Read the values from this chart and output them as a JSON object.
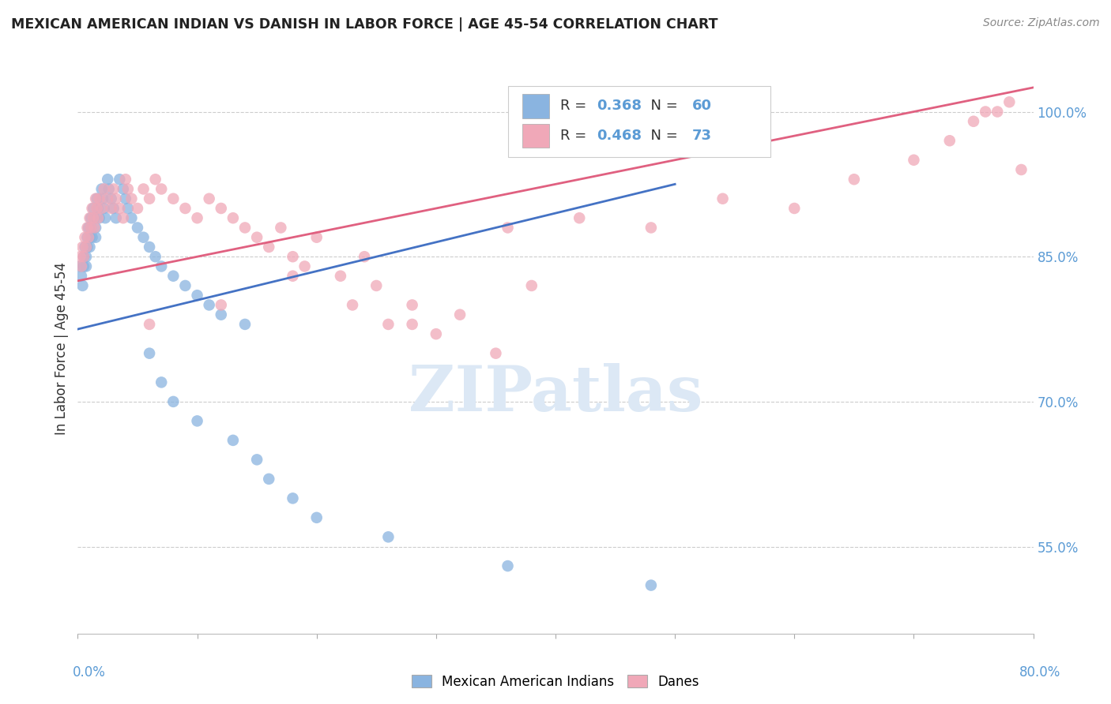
{
  "title": "MEXICAN AMERICAN INDIAN VS DANISH IN LABOR FORCE | AGE 45-54 CORRELATION CHART",
  "source": "Source: ZipAtlas.com",
  "ylabel": "In Labor Force | Age 45-54",
  "yaxis_ticks": [
    0.55,
    0.7,
    0.85,
    1.0
  ],
  "yaxis_labels": [
    "55.0%",
    "70.0%",
    "85.0%",
    "100.0%"
  ],
  "xmin": 0.0,
  "xmax": 0.8,
  "ymin": 0.46,
  "ymax": 1.05,
  "blue_R": 0.368,
  "blue_N": 60,
  "pink_R": 0.468,
  "pink_N": 73,
  "blue_color": "#8ab4e0",
  "pink_color": "#f0a8b8",
  "blue_line_color": "#4472c4",
  "pink_line_color": "#e06080",
  "legend_label_blue": "Mexican American Indians",
  "legend_label_pink": "Danes",
  "blue_trend_x0": 0.0,
  "blue_trend_y0": 0.775,
  "blue_trend_x1": 0.5,
  "blue_trend_y1": 0.925,
  "pink_trend_x0": 0.0,
  "pink_trend_y0": 0.825,
  "pink_trend_x1": 0.8,
  "pink_trend_y1": 1.025,
  "blue_scatter_x": [
    0.002,
    0.003,
    0.004,
    0.005,
    0.005,
    0.006,
    0.007,
    0.007,
    0.008,
    0.008,
    0.009,
    0.01,
    0.01,
    0.011,
    0.011,
    0.012,
    0.013,
    0.014,
    0.015,
    0.015,
    0.016,
    0.017,
    0.018,
    0.02,
    0.021,
    0.022,
    0.023,
    0.025,
    0.026,
    0.028,
    0.03,
    0.032,
    0.035,
    0.038,
    0.04,
    0.042,
    0.045,
    0.05,
    0.055,
    0.06,
    0.065,
    0.07,
    0.08,
    0.09,
    0.1,
    0.11,
    0.12,
    0.14,
    0.06,
    0.07,
    0.08,
    0.1,
    0.13,
    0.15,
    0.16,
    0.18,
    0.2,
    0.26,
    0.36,
    0.48
  ],
  "blue_scatter_y": [
    0.84,
    0.83,
    0.82,
    0.85,
    0.84,
    0.86,
    0.85,
    0.84,
    0.87,
    0.86,
    0.88,
    0.87,
    0.86,
    0.89,
    0.88,
    0.87,
    0.9,
    0.89,
    0.88,
    0.87,
    0.91,
    0.9,
    0.89,
    0.92,
    0.91,
    0.9,
    0.89,
    0.93,
    0.92,
    0.91,
    0.9,
    0.89,
    0.93,
    0.92,
    0.91,
    0.9,
    0.89,
    0.88,
    0.87,
    0.86,
    0.85,
    0.84,
    0.83,
    0.82,
    0.81,
    0.8,
    0.79,
    0.78,
    0.75,
    0.72,
    0.7,
    0.68,
    0.66,
    0.64,
    0.62,
    0.6,
    0.58,
    0.56,
    0.53,
    0.51
  ],
  "pink_scatter_x": [
    0.002,
    0.003,
    0.004,
    0.005,
    0.006,
    0.007,
    0.008,
    0.009,
    0.01,
    0.011,
    0.012,
    0.013,
    0.014,
    0.015,
    0.016,
    0.017,
    0.018,
    0.02,
    0.022,
    0.025,
    0.028,
    0.03,
    0.032,
    0.035,
    0.038,
    0.04,
    0.042,
    0.045,
    0.05,
    0.055,
    0.06,
    0.065,
    0.07,
    0.08,
    0.09,
    0.1,
    0.11,
    0.12,
    0.13,
    0.14,
    0.15,
    0.16,
    0.17,
    0.18,
    0.19,
    0.2,
    0.22,
    0.24,
    0.25,
    0.26,
    0.28,
    0.3,
    0.32,
    0.35,
    0.38,
    0.06,
    0.12,
    0.18,
    0.23,
    0.28,
    0.36,
    0.42,
    0.48,
    0.54,
    0.6,
    0.65,
    0.7,
    0.73,
    0.75,
    0.76,
    0.77,
    0.78,
    0.79
  ],
  "pink_scatter_y": [
    0.85,
    0.84,
    0.86,
    0.85,
    0.87,
    0.86,
    0.88,
    0.87,
    0.89,
    0.88,
    0.9,
    0.89,
    0.88,
    0.91,
    0.9,
    0.89,
    0.91,
    0.9,
    0.92,
    0.91,
    0.9,
    0.92,
    0.91,
    0.9,
    0.89,
    0.93,
    0.92,
    0.91,
    0.9,
    0.92,
    0.91,
    0.93,
    0.92,
    0.91,
    0.9,
    0.89,
    0.91,
    0.9,
    0.89,
    0.88,
    0.87,
    0.86,
    0.88,
    0.85,
    0.84,
    0.87,
    0.83,
    0.85,
    0.82,
    0.78,
    0.8,
    0.77,
    0.79,
    0.75,
    0.82,
    0.78,
    0.8,
    0.83,
    0.8,
    0.78,
    0.88,
    0.89,
    0.88,
    0.91,
    0.9,
    0.93,
    0.95,
    0.97,
    0.99,
    1.0,
    1.0,
    1.01,
    0.94
  ]
}
